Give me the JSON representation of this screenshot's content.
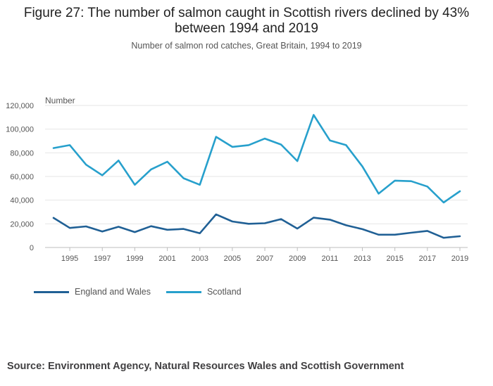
{
  "header": {
    "title_line1": "Figure 27: The number of salmon caught in Scottish rivers declined by 43%",
    "title_line2": "between 1994 and 2019",
    "subtitle": "Number of salmon rod catches, Great Britain, 1994 to 2019"
  },
  "footer": {
    "source": "Source: Environment Agency, Natural Resources Wales and Scottish Government"
  },
  "chart_data": {
    "type": "line",
    "title": "Number of salmon rod catches, Great Britain, 1994 to 2019",
    "xlabel": "",
    "ylabel": "Number",
    "x": [
      1994,
      1995,
      1996,
      1997,
      1998,
      1999,
      2000,
      2001,
      2002,
      2003,
      2004,
      2005,
      2006,
      2007,
      2008,
      2009,
      2010,
      2011,
      2012,
      2013,
      2014,
      2015,
      2016,
      2017,
      2018,
      2019
    ],
    "x_tick_labels": [
      "1995",
      "1997",
      "1999",
      "2001",
      "2003",
      "2005",
      "2007",
      "2009",
      "2011",
      "2013",
      "2015",
      "2017",
      "2019"
    ],
    "y_tick_labels": [
      "0",
      "20,000",
      "40,000",
      "60,000",
      "80,000",
      "100,000",
      "120,000"
    ],
    "ylim": [
      0,
      120000
    ],
    "grid": true,
    "legend_position": "bottom-left",
    "series": [
      {
        "name": "England and Wales",
        "color": "#206095",
        "values": [
          25000,
          16500,
          17800,
          13500,
          17500,
          13000,
          18000,
          15000,
          15700,
          12000,
          28000,
          22000,
          20000,
          20500,
          24000,
          16000,
          25200,
          23500,
          18800,
          15500,
          10800,
          10800,
          12500,
          14000,
          8200,
          9500
        ]
      },
      {
        "name": "Scotland",
        "color": "#27a0cc",
        "values": [
          84000,
          86500,
          70000,
          61000,
          73500,
          53000,
          66000,
          72500,
          58500,
          53000,
          93500,
          85000,
          86500,
          92000,
          87000,
          73000,
          112000,
          90500,
          86500,
          68500,
          45500,
          56500,
          56000,
          51500,
          38000,
          47500
        ]
      }
    ]
  }
}
